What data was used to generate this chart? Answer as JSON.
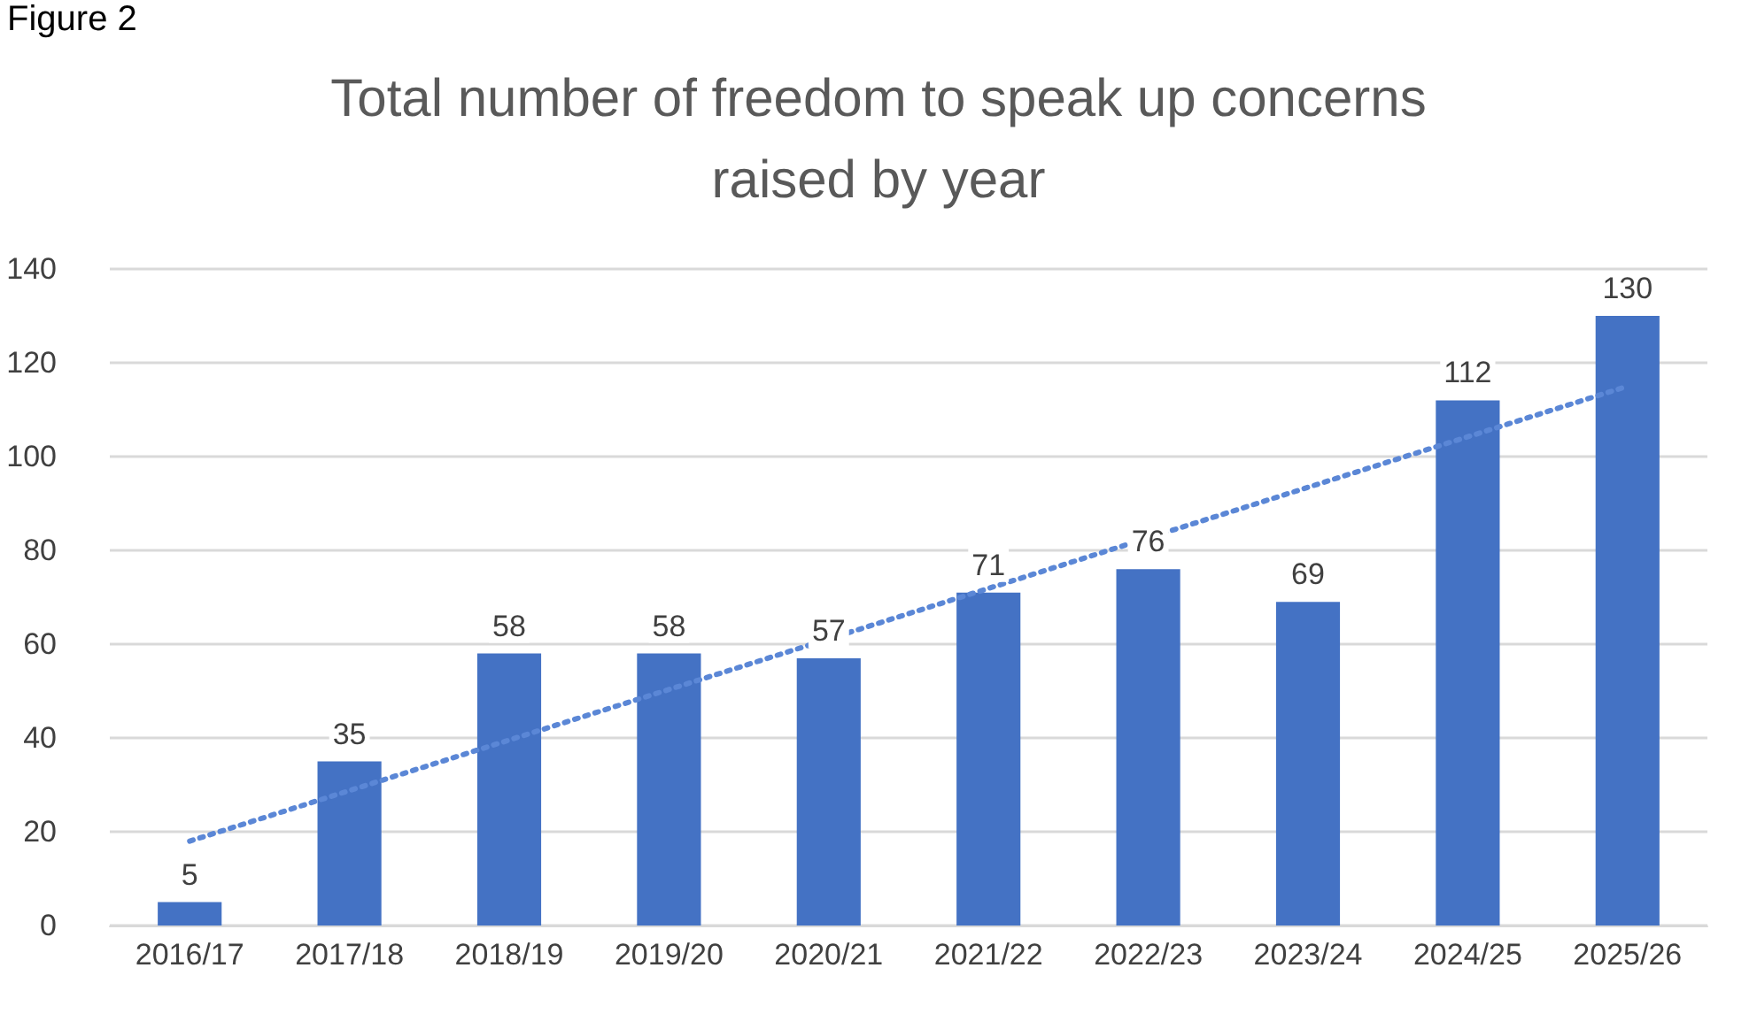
{
  "chart_data": {
    "type": "bar",
    "title": "Total number of freedom to speak up concerns\nraised by year",
    "annotations": [
      "Figure 2"
    ],
    "categories": [
      "2016/17",
      "2017/18",
      "2018/19",
      "2019/20",
      "2020/21",
      "2021/22",
      "2022/23",
      "2023/24",
      "2024/25",
      "2025/26"
    ],
    "series": [
      {
        "color": "#4472c4",
        "values": [
          5,
          35,
          58,
          58,
          57,
          71,
          76,
          69,
          112,
          130
        ],
        "value_labels": [
          "5",
          "35",
          "58",
          "58",
          "57",
          "71",
          "76",
          "69",
          "112",
          "130"
        ]
      },
      {
        "type": "line",
        "color": "#5b87d6",
        "x": [
          "2016/17",
          "2025/26"
        ],
        "values": [
          18,
          115
        ],
        "line_style": "dotted",
        "marker": "none"
      }
    ],
    "ylim": [
      0,
      140
    ],
    "yticks": [
      0,
      20,
      40,
      60,
      80,
      100,
      120,
      140
    ],
    "grid": "y"
  }
}
